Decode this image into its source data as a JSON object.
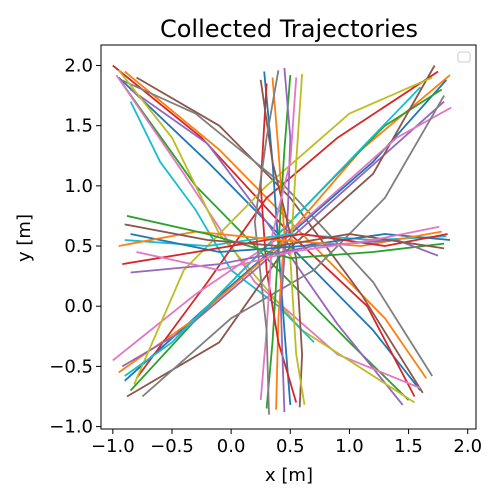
{
  "chart_data": {
    "type": "line",
    "title": "Collected Trajectories",
    "xlabel": "x [m]",
    "ylabel": "y [m]",
    "xlim": [
      -1.1,
      2.07
    ],
    "ylim": [
      -1.02,
      2.17
    ],
    "xticks": [
      -1.0,
      -0.5,
      0.0,
      0.5,
      1.0,
      1.5,
      2.0
    ],
    "xtick_labels": [
      "−1.0",
      "−0.5",
      "0.0",
      "0.5",
      "1.0",
      "1.5",
      "2.0"
    ],
    "yticks": [
      -1.0,
      -0.5,
      0.0,
      0.5,
      1.0,
      1.5,
      2.0
    ],
    "ytick_labels": [
      "−1.0",
      "−0.5",
      "0.0",
      "0.5",
      "1.0",
      "1.5",
      "2.0"
    ],
    "grid": false,
    "legend": "top-right, empty",
    "palette": [
      "#1f77b4",
      "#ff7f0e",
      "#2ca02c",
      "#d62728",
      "#9467bd",
      "#8c564b",
      "#e377c2",
      "#7f7f7f",
      "#bcbd22",
      "#17becf"
    ],
    "series": [
      {
        "x": [
          -0.95,
          -0.2,
          0.6,
          1.2,
          1.6
        ],
        "y": [
          1.9,
          1.2,
          0.4,
          -0.2,
          -0.7
        ]
      },
      {
        "x": [
          -0.9,
          -0.1,
          0.7,
          1.3,
          1.65
        ],
        "y": [
          1.95,
          1.3,
          0.5,
          -0.1,
          -0.6
        ]
      },
      {
        "x": [
          -0.92,
          -0.3,
          0.4,
          1.0,
          1.5
        ],
        "y": [
          1.85,
          1.0,
          0.3,
          -0.3,
          -0.78
        ]
      },
      {
        "x": [
          -1.0,
          -0.25,
          0.5,
          1.15,
          1.55
        ],
        "y": [
          2.0,
          1.4,
          0.6,
          0.0,
          -0.75
        ]
      },
      {
        "x": [
          -0.85,
          -0.2,
          0.3,
          0.9,
          1.45
        ],
        "y": [
          1.8,
          1.35,
          0.7,
          -0.15,
          -0.82
        ]
      },
      {
        "x": [
          -0.8,
          -0.1,
          0.5,
          1.1,
          1.62
        ],
        "y": [
          1.9,
          1.5,
          0.9,
          0.1,
          -0.72
        ]
      },
      {
        "x": [
          -0.97,
          -0.4,
          0.2,
          0.9,
          1.6
        ],
        "y": [
          1.92,
          1.1,
          0.2,
          -0.4,
          -0.68
        ]
      },
      {
        "x": [
          -0.93,
          -0.3,
          0.45,
          1.2,
          1.7
        ],
        "y": [
          1.88,
          1.6,
          1.0,
          0.2,
          -0.58
        ]
      },
      {
        "x": [
          -0.95,
          -0.5,
          -0.1,
          0.6,
          1.55
        ],
        "y": [
          1.96,
          1.4,
          0.6,
          -0.2,
          -0.8
        ]
      },
      {
        "x": [
          -0.85,
          -0.6,
          -0.3,
          0.0,
          0.4,
          0.7
        ],
        "y": [
          1.7,
          1.2,
          0.8,
          0.3,
          0.0,
          -0.3
        ]
      },
      {
        "x": [
          -0.9,
          -0.2,
          0.5,
          1.2,
          1.82
        ],
        "y": [
          -0.62,
          0.0,
          0.6,
          1.2,
          1.88
        ]
      },
      {
        "x": [
          -0.95,
          -0.3,
          0.4,
          1.1,
          1.85
        ],
        "y": [
          -0.55,
          -0.1,
          0.5,
          1.3,
          1.92
        ]
      },
      {
        "x": [
          -0.85,
          -0.1,
          0.6,
          1.3,
          1.78
        ],
        "y": [
          -0.7,
          0.1,
          0.8,
          1.5,
          1.8
        ]
      },
      {
        "x": [
          -0.8,
          -0.2,
          0.3,
          0.9,
          1.75
        ],
        "y": [
          -0.6,
          0.2,
          0.9,
          1.4,
          1.95
        ]
      },
      {
        "x": [
          -0.92,
          -0.4,
          0.2,
          1.0,
          1.8
        ],
        "y": [
          -0.5,
          -0.2,
          0.3,
          1.0,
          1.7
        ]
      },
      {
        "x": [
          -0.88,
          -0.1,
          0.4,
          1.2,
          1.72
        ],
        "y": [
          -0.75,
          -0.3,
          0.4,
          1.1,
          2.0
        ]
      },
      {
        "x": [
          -1.0,
          -0.3,
          0.6,
          1.4,
          1.86
        ],
        "y": [
          -0.45,
          0.1,
          0.7,
          1.4,
          1.65
        ]
      },
      {
        "x": [
          -0.75,
          0.0,
          0.7,
          1.3,
          1.8
        ],
        "y": [
          -0.75,
          -0.1,
          0.3,
          0.9,
          1.75
        ]
      },
      {
        "x": [
          -0.82,
          -0.4,
          0.3,
          1.0,
          1.7
        ],
        "y": [
          -0.65,
          0.3,
          1.0,
          1.6,
          1.9
        ]
      },
      {
        "x": [
          -0.9,
          -0.5,
          -0.1,
          0.6,
          1.6
        ],
        "y": [
          -0.58,
          -0.3,
          0.1,
          0.8,
          1.82
        ]
      },
      {
        "x": [
          0.28,
          0.35,
          0.4,
          0.45,
          0.5
        ],
        "y": [
          1.95,
          1.2,
          0.5,
          -0.2,
          -0.82
        ]
      },
      {
        "x": [
          0.35,
          0.4,
          0.45,
          0.4,
          0.38
        ],
        "y": [
          1.9,
          1.3,
          0.6,
          -0.1,
          -0.86
        ]
      },
      {
        "x": [
          0.5,
          0.45,
          0.4,
          0.35,
          0.3
        ],
        "y": [
          1.92,
          1.3,
          0.5,
          -0.3,
          -0.85
        ]
      },
      {
        "x": [
          0.3,
          0.25,
          0.3,
          0.4,
          0.55
        ],
        "y": [
          1.85,
          1.0,
          0.3,
          -0.3,
          -0.8
        ]
      },
      {
        "x": [
          0.45,
          0.5,
          0.48,
          0.42,
          0.45
        ],
        "y": [
          1.98,
          1.4,
          0.8,
          0.0,
          -0.88
        ]
      },
      {
        "x": [
          0.25,
          0.35,
          0.55,
          0.6,
          0.58
        ],
        "y": [
          1.88,
          1.2,
          0.4,
          -0.4,
          -0.84
        ]
      },
      {
        "x": [
          0.55,
          0.5,
          0.35,
          0.3,
          0.25
        ],
        "y": [
          1.9,
          1.2,
          0.6,
          -0.2,
          -0.78
        ]
      },
      {
        "x": [
          0.4,
          0.3,
          0.2,
          0.3,
          0.32
        ],
        "y": [
          1.96,
          1.4,
          0.7,
          -0.2,
          -0.9
        ]
      },
      {
        "x": [
          0.6,
          0.55,
          0.5,
          0.55,
          0.62
        ],
        "y": [
          1.93,
          1.2,
          0.4,
          -0.4,
          -0.82
        ]
      },
      {
        "x": [
          -0.9,
          -0.2,
          0.5,
          1.2,
          1.82
        ],
        "y": [
          0.55,
          0.5,
          0.6,
          0.55,
          0.58
        ]
      },
      {
        "x": [
          -0.85,
          -0.1,
          0.6,
          1.3,
          1.85
        ],
        "y": [
          0.6,
          0.45,
          0.5,
          0.6,
          0.55
        ]
      },
      {
        "x": [
          -0.95,
          -0.3,
          0.4,
          1.1,
          1.78
        ],
        "y": [
          0.5,
          0.62,
          0.55,
          0.5,
          0.62
        ]
      },
      {
        "x": [
          -0.88,
          -0.2,
          0.5,
          1.2,
          1.8
        ],
        "y": [
          0.75,
          0.6,
          0.4,
          0.45,
          0.52
        ]
      },
      {
        "x": [
          -0.92,
          -0.3,
          0.6,
          1.3,
          1.83
        ],
        "y": [
          0.35,
          0.45,
          0.6,
          0.5,
          0.6
        ]
      },
      {
        "x": [
          -0.85,
          -0.1,
          0.7,
          1.4,
          1.75
        ],
        "y": [
          0.28,
          0.35,
          0.5,
          0.55,
          0.42
        ]
      },
      {
        "x": [
          -0.9,
          -0.2,
          0.4,
          1.0,
          1.8
        ],
        "y": [
          0.68,
          0.55,
          0.5,
          0.6,
          0.48
        ]
      },
      {
        "x": [
          -0.8,
          -0.1,
          0.5,
          1.2,
          1.76
        ],
        "y": [
          0.45,
          0.3,
          0.45,
          0.55,
          0.66
        ]
      }
    ]
  }
}
